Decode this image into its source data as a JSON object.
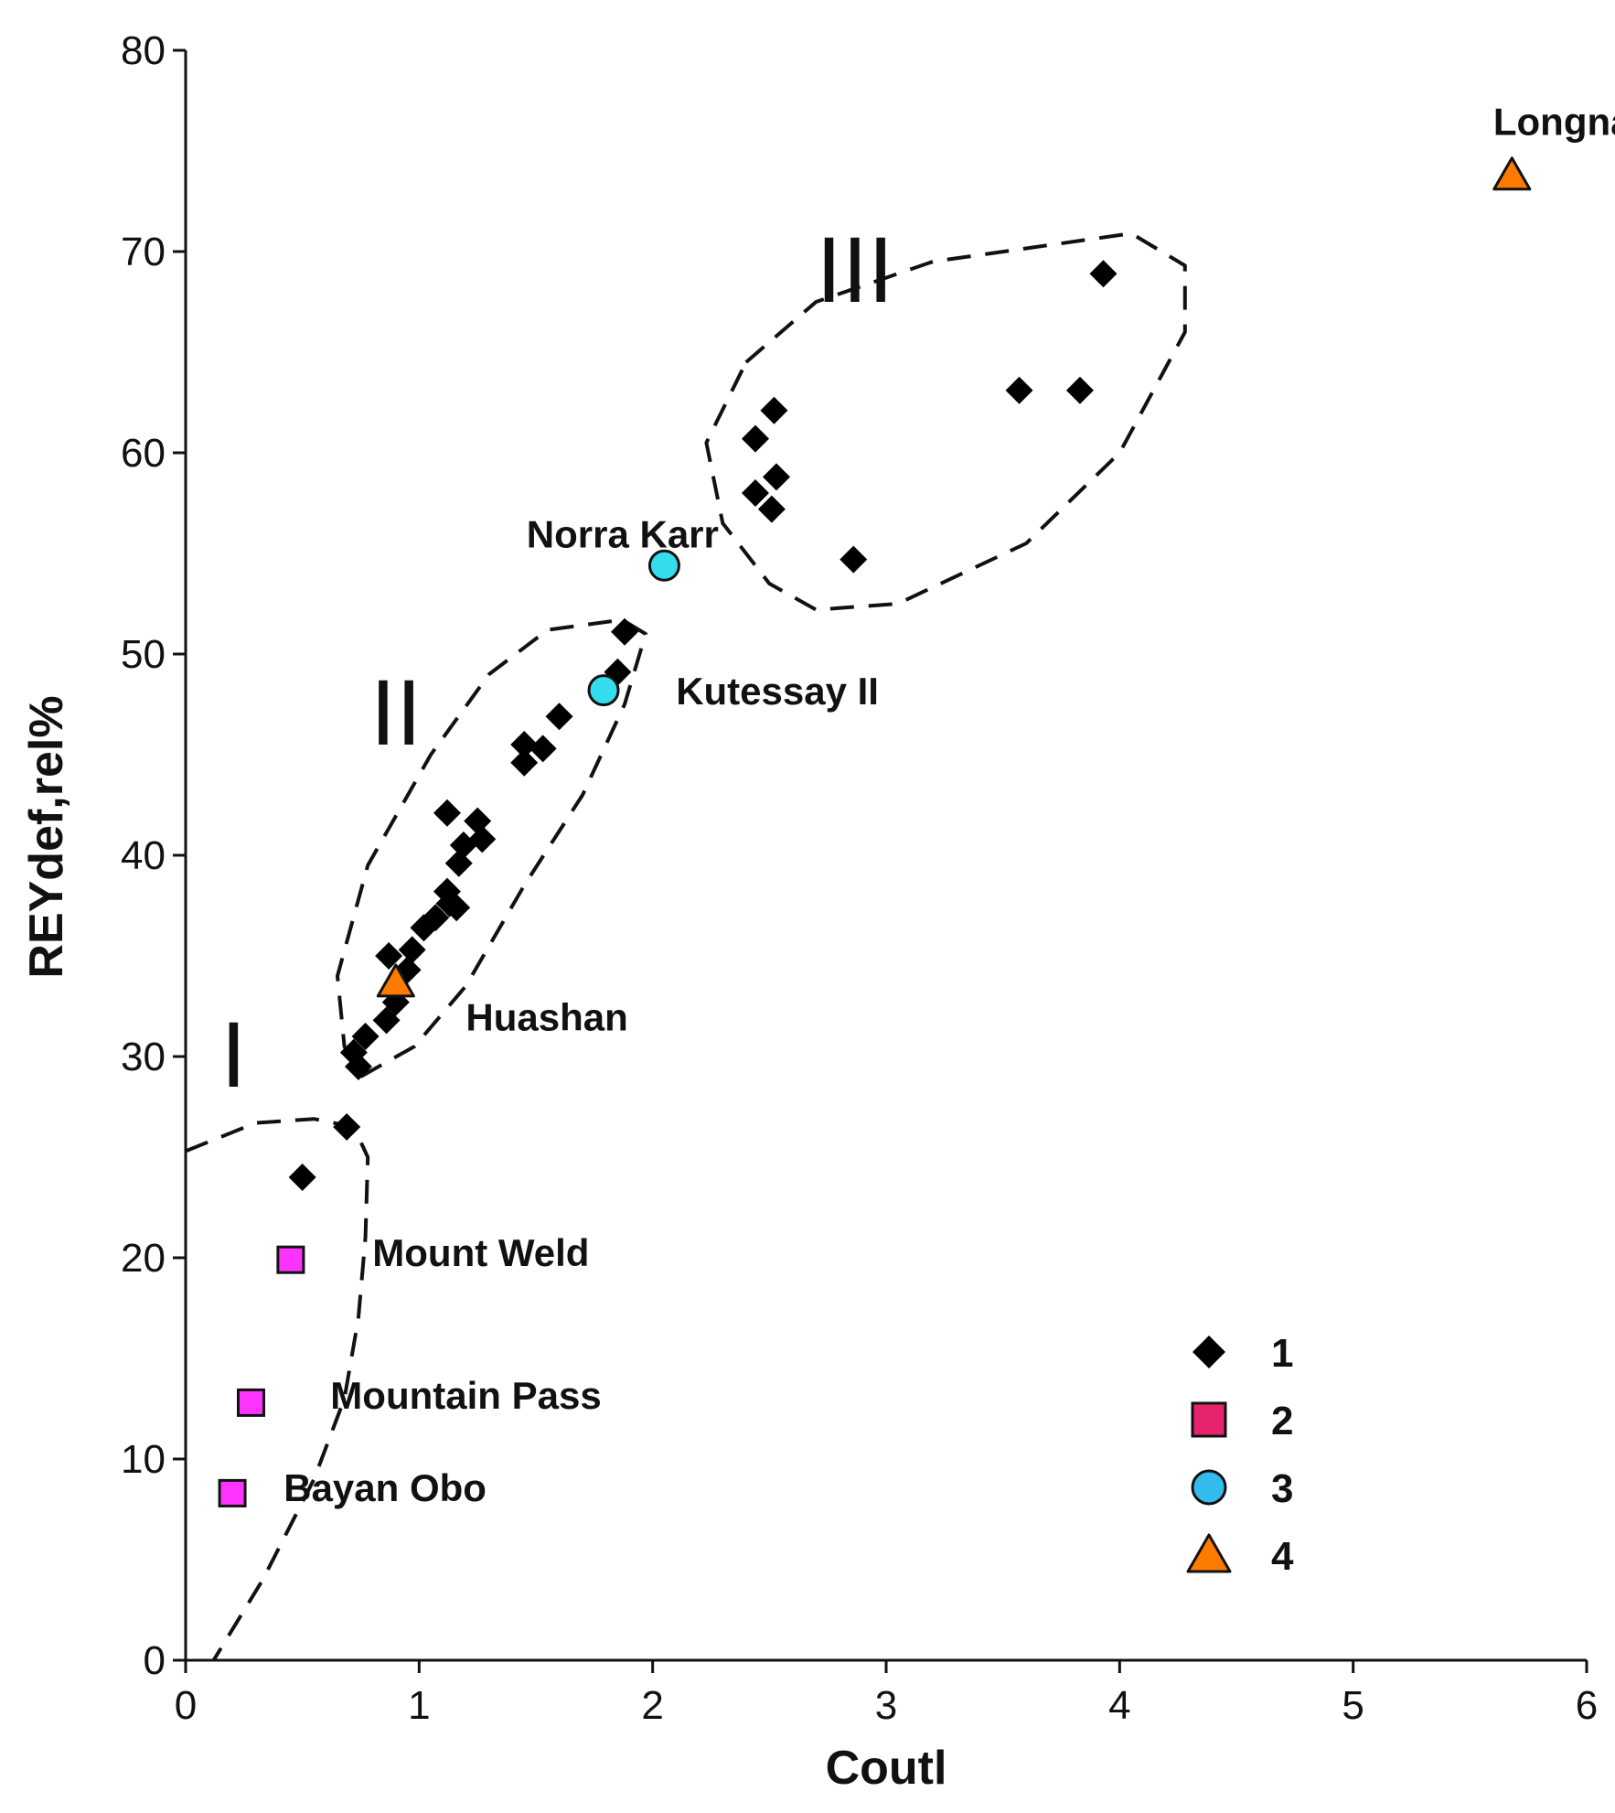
{
  "chart_data": {
    "type": "scatter",
    "title": "",
    "xlabel": "Coutl",
    "ylabel": "REYdef,rel%",
    "xlim": [
      0,
      6
    ],
    "ylim": [
      0,
      80
    ],
    "xticks": [
      "0",
      "1",
      "2",
      "3",
      "4",
      "5",
      "6"
    ],
    "yticks": [
      "0",
      "10",
      "20",
      "30",
      "40",
      "50",
      "60",
      "70",
      "80"
    ],
    "series": [
      {
        "name": "1",
        "marker": "diamond",
        "color": "#000000",
        "points": [
          {
            "x": 0.5,
            "y": 24.0
          },
          {
            "x": 0.69,
            "y": 26.5
          },
          {
            "x": 0.74,
            "y": 29.5
          },
          {
            "x": 0.72,
            "y": 30.2
          },
          {
            "x": 0.77,
            "y": 31.0
          },
          {
            "x": 0.86,
            "y": 31.8
          },
          {
            "x": 0.9,
            "y": 32.7
          },
          {
            "x": 0.87,
            "y": 35.0
          },
          {
            "x": 0.95,
            "y": 34.3
          },
          {
            "x": 0.97,
            "y": 35.3
          },
          {
            "x": 1.02,
            "y": 36.4
          },
          {
            "x": 1.07,
            "y": 36.9
          },
          {
            "x": 1.13,
            "y": 37.6
          },
          {
            "x": 1.16,
            "y": 37.4
          },
          {
            "x": 1.12,
            "y": 38.2
          },
          {
            "x": 1.17,
            "y": 39.6
          },
          {
            "x": 1.19,
            "y": 40.5
          },
          {
            "x": 1.12,
            "y": 42.1
          },
          {
            "x": 1.27,
            "y": 40.8
          },
          {
            "x": 1.25,
            "y": 41.7
          },
          {
            "x": 1.45,
            "y": 44.6
          },
          {
            "x": 1.45,
            "y": 45.5
          },
          {
            "x": 1.53,
            "y": 45.3
          },
          {
            "x": 1.6,
            "y": 46.9
          },
          {
            "x": 1.85,
            "y": 49.1
          },
          {
            "x": 1.88,
            "y": 51.1
          },
          {
            "x": 2.44,
            "y": 60.7
          },
          {
            "x": 2.52,
            "y": 62.1
          },
          {
            "x": 2.44,
            "y": 58.0
          },
          {
            "x": 2.53,
            "y": 58.8
          },
          {
            "x": 2.51,
            "y": 57.2
          },
          {
            "x": 2.86,
            "y": 54.7
          },
          {
            "x": 3.57,
            "y": 63.1
          },
          {
            "x": 3.83,
            "y": 63.1
          },
          {
            "x": 3.93,
            "y": 68.9
          }
        ]
      },
      {
        "name": "2",
        "marker": "square",
        "color": "#ff33ff",
        "points": [
          {
            "x": 0.45,
            "y": 19.9
          },
          {
            "x": 0.28,
            "y": 12.8
          },
          {
            "x": 0.2,
            "y": 8.3
          }
        ]
      },
      {
        "name": "3",
        "marker": "circle",
        "color": "#33ddee",
        "points": [
          {
            "x": 2.05,
            "y": 54.4
          },
          {
            "x": 1.79,
            "y": 48.2
          }
        ]
      },
      {
        "name": "4",
        "marker": "triangle",
        "color": "#ff7a00",
        "points": [
          {
            "x": 0.9,
            "y": 33.7
          },
          {
            "x": 5.68,
            "y": 73.8
          }
        ]
      }
    ],
    "annotations": [
      {
        "text": "Longnan",
        "x": 5.6,
        "y": 75.8
      },
      {
        "text": "Norra Karr",
        "x": 1.46,
        "y": 55.3
      },
      {
        "text": "Kutessay II",
        "x": 2.1,
        "y": 47.5
      },
      {
        "text": "Huashan",
        "x": 1.2,
        "y": 31.3
      },
      {
        "text": "Mount Weld",
        "x": 0.8,
        "y": 19.6
      },
      {
        "text": "Mountain Pass",
        "x": 0.62,
        "y": 12.5
      },
      {
        "text": "Bayan Obo",
        "x": 0.42,
        "y": 7.9
      }
    ],
    "regions": [
      {
        "label": "I",
        "label_at": [
          0.15,
          28.5
        ],
        "boundary": [
          [
            0.0,
            25.3
          ],
          [
            0.3,
            26.7
          ],
          [
            0.55,
            26.9
          ],
          [
            0.72,
            26.5
          ],
          [
            0.78,
            25.0
          ],
          [
            0.77,
            21.0
          ],
          [
            0.74,
            17.0
          ],
          [
            0.68,
            13.0
          ],
          [
            0.55,
            9.0
          ],
          [
            0.33,
            4.0
          ],
          [
            0.12,
            0.0
          ]
        ]
      },
      {
        "label": "II",
        "label_at": [
          0.79,
          45.5
        ],
        "boundary": [
          [
            0.75,
            29.0
          ],
          [
            0.98,
            30.5
          ],
          [
            1.2,
            33.5
          ],
          [
            1.45,
            38.5
          ],
          [
            1.7,
            43.0
          ],
          [
            1.88,
            47.5
          ],
          [
            1.97,
            51.0
          ],
          [
            1.87,
            51.7
          ],
          [
            1.55,
            51.2
          ],
          [
            1.3,
            49.0
          ],
          [
            1.05,
            45.0
          ],
          [
            0.78,
            39.5
          ],
          [
            0.65,
            34.0
          ],
          [
            0.68,
            30.5
          ],
          [
            0.75,
            29.0
          ]
        ]
      },
      {
        "label": "III",
        "label_at": [
          2.7,
          67.5
        ],
        "boundary": [
          [
            2.4,
            64.5
          ],
          [
            2.7,
            67.5
          ],
          [
            3.2,
            69.5
          ],
          [
            4.05,
            70.9
          ],
          [
            4.28,
            69.3
          ],
          [
            4.28,
            66.0
          ],
          [
            4.0,
            60.0
          ],
          [
            3.6,
            55.5
          ],
          [
            3.05,
            52.5
          ],
          [
            2.7,
            52.2
          ],
          [
            2.5,
            53.5
          ],
          [
            2.3,
            56.5
          ],
          [
            2.23,
            60.5
          ],
          [
            2.4,
            64.5
          ]
        ]
      }
    ],
    "legend": {
      "position": "bottom-right",
      "entries": [
        {
          "label": "1",
          "marker": "diamond",
          "color": "#000000"
        },
        {
          "label": "2",
          "marker": "square",
          "color": "#e8236e"
        },
        {
          "label": "3",
          "marker": "circle",
          "color": "#33bbee"
        },
        {
          "label": "4",
          "marker": "triangle",
          "color": "#ff7a00"
        }
      ]
    }
  }
}
